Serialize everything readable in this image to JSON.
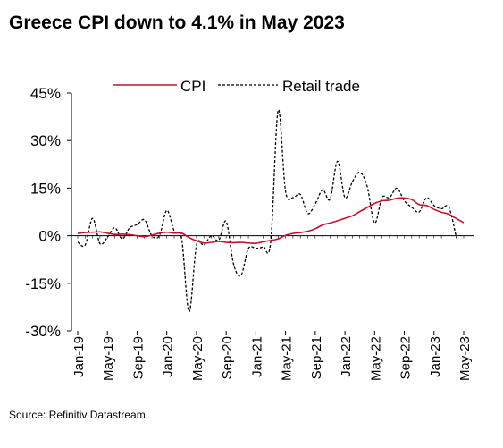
{
  "title": "Greece CPI down to 4.1% in May 2023",
  "source": "Source: Refinitiv Datastream",
  "chart_data": {
    "type": "line",
    "title": "Greece CPI down to 4.1% in May 2023",
    "xlabel": "",
    "ylabel": "",
    "ylim": [
      -30,
      45
    ],
    "yticks": [
      -30,
      -15,
      0,
      15,
      30,
      45
    ],
    "ytick_labels": [
      "-30%",
      "-15%",
      "0%",
      "15%",
      "30%",
      "45%"
    ],
    "xtick_labels": [
      "Jan-19",
      "May-19",
      "Sep-19",
      "Jan-20",
      "May-20",
      "Sep-20",
      "Jan-21",
      "May-21",
      "Sep-21",
      "Jan-22",
      "May-22",
      "Sep-22",
      "Jan-23",
      "May-23"
    ],
    "x": [
      "Jan-19",
      "Feb-19",
      "Mar-19",
      "Apr-19",
      "May-19",
      "Jun-19",
      "Jul-19",
      "Aug-19",
      "Sep-19",
      "Oct-19",
      "Nov-19",
      "Dec-19",
      "Jan-20",
      "Feb-20",
      "Mar-20",
      "Apr-20",
      "May-20",
      "Jun-20",
      "Jul-20",
      "Aug-20",
      "Sep-20",
      "Oct-20",
      "Nov-20",
      "Dec-20",
      "Jan-21",
      "Feb-21",
      "Mar-21",
      "Apr-21",
      "May-21",
      "Jun-21",
      "Jul-21",
      "Aug-21",
      "Sep-21",
      "Oct-21",
      "Nov-21",
      "Dec-21",
      "Jan-22",
      "Feb-22",
      "Mar-22",
      "Apr-22",
      "May-22",
      "Jun-22",
      "Jul-22",
      "Aug-22",
      "Sep-22",
      "Oct-22",
      "Nov-22",
      "Dec-22",
      "Jan-23",
      "Feb-23",
      "Mar-23",
      "Apr-23",
      "May-23"
    ],
    "legend_position": "top",
    "grid": false,
    "series": [
      {
        "name": "CPI",
        "color": "#c8102e",
        "dash": "solid",
        "values": [
          0.7,
          1.0,
          1.1,
          1.2,
          0.8,
          0.4,
          0.5,
          0.3,
          0.0,
          -0.3,
          0.2,
          0.8,
          1.1,
          0.8,
          0.8,
          -0.6,
          -1.6,
          -2.3,
          -2.1,
          -1.8,
          -2.1,
          -2.2,
          -2.1,
          -2.3,
          -2.4,
          -1.9,
          -1.5,
          -1.0,
          0.1,
          0.7,
          1.0,
          1.4,
          2.2,
          3.4,
          4.0,
          4.7,
          5.5,
          6.3,
          7.6,
          8.9,
          10.2,
          11.0,
          11.2,
          11.8,
          11.9,
          11.4,
          9.8,
          9.5,
          8.3,
          7.4,
          6.8,
          5.4,
          4.1
        ]
      },
      {
        "name": "Retail trade",
        "color": "#000000",
        "dash": "dashed",
        "values": [
          -2.0,
          -3.0,
          5.5,
          -2.5,
          -0.5,
          2.5,
          -1.0,
          2.5,
          3.5,
          5.0,
          0.0,
          0.0,
          8.0,
          1.5,
          -1.0,
          -24.0,
          -3.0,
          -3.0,
          0.0,
          -1.5,
          4.5,
          -9.0,
          -12.5,
          -4.0,
          -4.0,
          -3.5,
          -2.0,
          39.5,
          14.0,
          12.0,
          13.0,
          7.0,
          10.0,
          14.5,
          11.5,
          23.5,
          12.0,
          17.0,
          20.0,
          15.5,
          4.0,
          12.0,
          12.0,
          15.0,
          11.0,
          9.0,
          7.5,
          12.0,
          9.5,
          8.5,
          9.0,
          -0.5,
          null
        ]
      }
    ]
  }
}
